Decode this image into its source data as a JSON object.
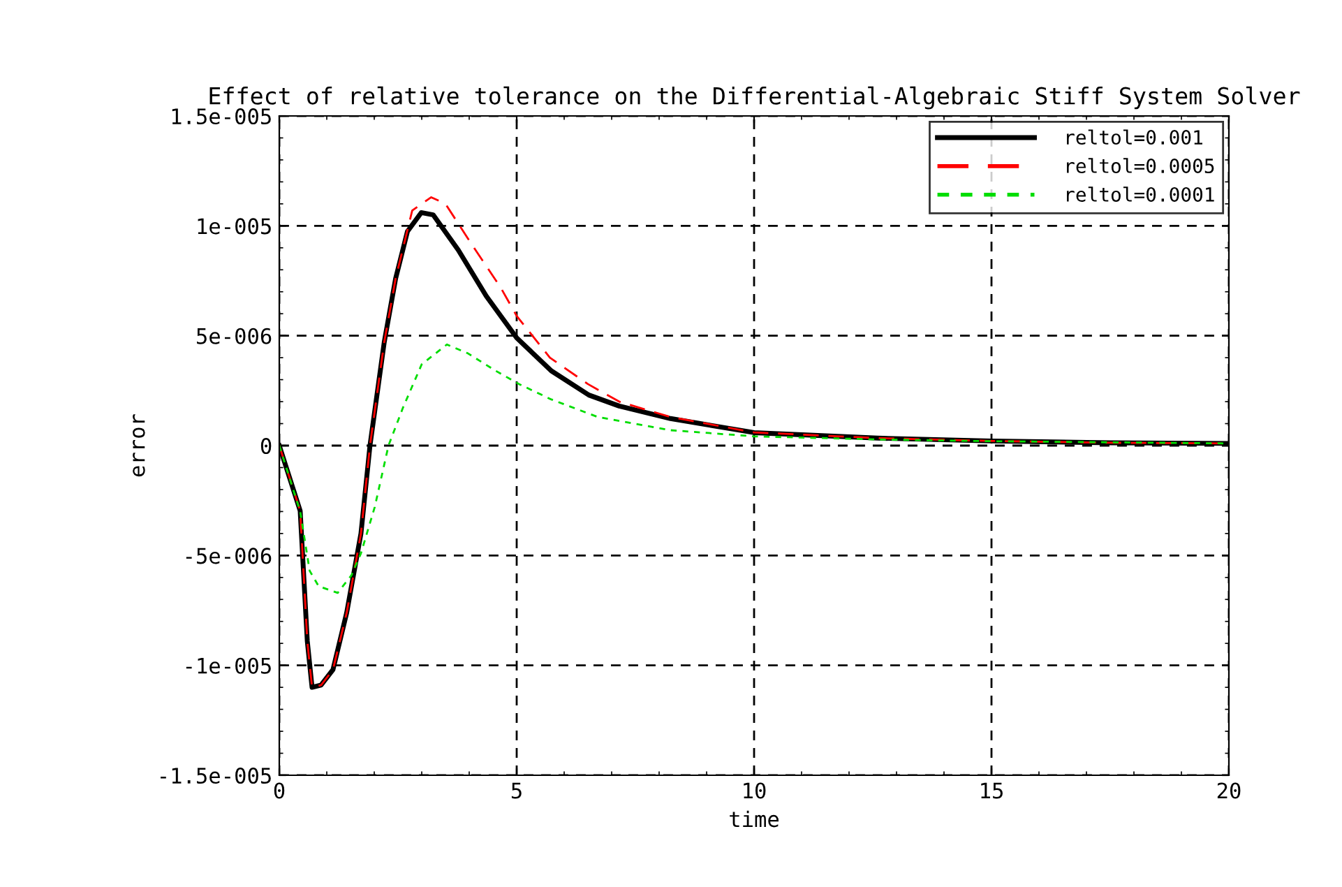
{
  "chart_data": {
    "type": "line",
    "title": "Effect of relative tolerance on the Differential-Algebraic Stiff System Solver",
    "xlabel": "time",
    "ylabel": "error",
    "xlim": [
      0,
      20
    ],
    "xticks": [
      0,
      5,
      10,
      15,
      20
    ],
    "ylim": [
      -1.5e-05,
      1.5e-05
    ],
    "yticks": [
      {
        "value": -1.5e-05,
        "label": "-1.5e-005"
      },
      {
        "value": -1e-05,
        "label": "-1e-005"
      },
      {
        "value": -5e-06,
        "label": "-5e-006"
      },
      {
        "value": 0,
        "label": "0"
      },
      {
        "value": 5e-06,
        "label": "5e-006"
      },
      {
        "value": 1e-05,
        "label": "1e-005"
      },
      {
        "value": 1.5e-05,
        "label": "1.5e-005"
      }
    ],
    "grid": true,
    "legend": "top right",
    "marker": "none",
    "series": [
      {
        "name": "reltol=0.001",
        "color": "#000000",
        "line_style": "solid",
        "x": [
          0,
          0.44,
          0.59,
          0.69,
          0.88,
          1.13,
          1.42,
          1.72,
          1.91,
          2.21,
          2.45,
          2.7,
          2.99,
          3.24,
          3.77,
          4.36,
          5,
          5.73,
          6.52,
          7.16,
          8.24,
          10,
          12.6,
          15,
          17.5,
          20
        ],
        "values": [
          0,
          -2.97e-06,
          -8.9e-06,
          -1.1e-05,
          -1.09e-05,
          -1.02e-05,
          -7.6e-06,
          -4e-06,
          0,
          4.7e-06,
          7.6e-06,
          9.75e-06,
          1.06e-05,
          1.05e-05,
          8.9e-06,
          6.8e-06,
          4.9e-06,
          3.4e-06,
          2.3e-06,
          1.8e-06,
          1.23e-06,
          5.9e-07,
          3.4e-07,
          2.1e-07,
          1.3e-07,
          1e-07
        ]
      },
      {
        "name": "reltol=0.0005",
        "color": "#ff0000",
        "line_style": "dashed",
        "x": [
          0,
          0.44,
          0.59,
          0.69,
          0.88,
          1.13,
          1.42,
          1.72,
          1.91,
          2.21,
          2.45,
          2.8,
          3.2,
          3.5,
          4.07,
          4.66,
          5,
          5.7,
          6.5,
          7.16,
          8.24,
          10,
          12.6,
          15,
          17.5,
          20
        ],
        "values": [
          0,
          -2.97e-06,
          -8.9e-06,
          -1.1e-05,
          -1.09e-05,
          -1.02e-05,
          -7.6e-06,
          -4e-06,
          0,
          4.7e-06,
          7.6e-06,
          1.07e-05,
          1.13e-05,
          1.1e-05,
          9.1e-06,
          7.2e-06,
          5.9e-06,
          4e-06,
          2.8e-06,
          2e-06,
          1.3e-06,
          6e-07,
          3.4e-07,
          2.1e-07,
          1.3e-07,
          1e-07
        ]
      },
      {
        "name": "reltol=0.0001",
        "color": "#00dd00",
        "line_style": "dotted",
        "x": [
          0,
          0.44,
          0.64,
          0.83,
          1.23,
          1.52,
          1.72,
          2.01,
          2.3,
          2.6,
          3.0,
          3.53,
          3.97,
          4.56,
          5.05,
          5.73,
          6.71,
          8.24,
          10,
          12.6,
          15,
          20
        ],
        "values": [
          0,
          -3e-06,
          -5.7e-06,
          -6.4e-06,
          -6.7e-06,
          -5.9e-06,
          -4.9e-06,
          -2.8e-06,
          0,
          1.7e-06,
          3.7e-06,
          4.6e-06,
          4.2e-06,
          3.4e-06,
          2.8e-06,
          2.1e-06,
          1.3e-06,
          7e-07,
          4.2e-07,
          2.8e-07,
          2e-07,
          1e-07
        ]
      }
    ]
  }
}
